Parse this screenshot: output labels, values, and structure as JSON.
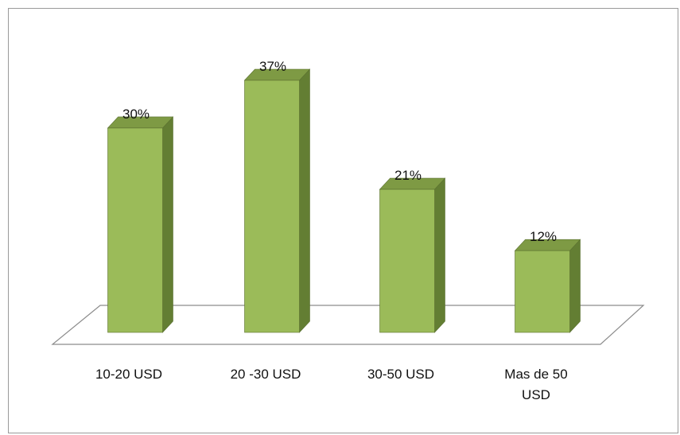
{
  "chart_data": {
    "type": "bar",
    "style": "3d-column",
    "categories": [
      "10-20 USD",
      "20 -30 USD",
      "30-50 USD",
      "Mas de 50 USD"
    ],
    "category_lines": [
      [
        "10-20 USD"
      ],
      [
        "20 -30 USD"
      ],
      [
        "30-50 USD"
      ],
      [
        "Mas de 50",
        "USD"
      ]
    ],
    "values": [
      30,
      37,
      21,
      12
    ],
    "value_labels": [
      "30%",
      "37%",
      "21%",
      "12%"
    ],
    "ylim": [
      0,
      37
    ],
    "grid": false,
    "legend": "none",
    "colors": {
      "bar_front": "#9bbb59",
      "bar_top": "#7e9a44",
      "bar_side": "#637e33",
      "bar_edge": "#5a7030",
      "floor_stroke": "#8c8c8c"
    }
  }
}
